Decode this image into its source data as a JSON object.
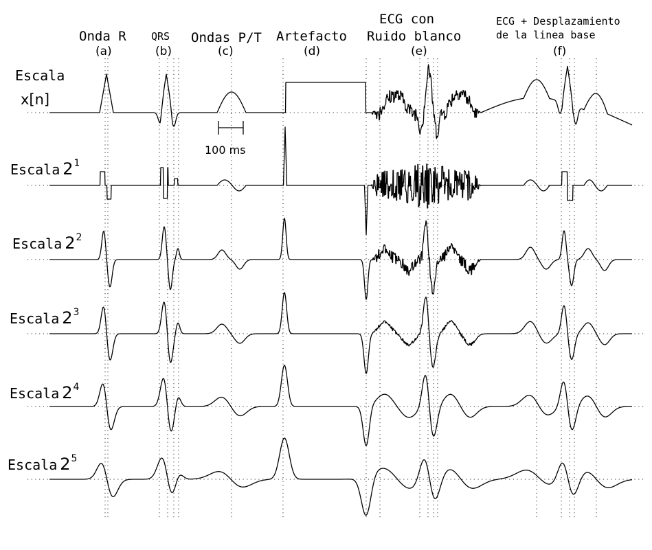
{
  "headers": {
    "a": {
      "line1": "Onda R",
      "tag": "(a)"
    },
    "b": {
      "line1": "QRS",
      "tag": "(b)"
    },
    "c": {
      "line1": "Ondas P/T",
      "tag": "(c)"
    },
    "d": {
      "line1": "Artefacto",
      "tag": "(d)"
    },
    "e": {
      "line1": "ECG con",
      "line2": "Ruido blanco",
      "tag": "(e)"
    },
    "f": {
      "line1": "ECG + Desplazamiento",
      "line2": "de la linea base",
      "tag": "(f)"
    }
  },
  "rows": {
    "r0": {
      "word": "Escala",
      "symbol": "x[n]"
    },
    "r1": {
      "word": "Escala",
      "base": "2",
      "exp": "1"
    },
    "r2": {
      "word": "Escala",
      "base": "2",
      "exp": "2"
    },
    "r3": {
      "word": "Escala",
      "base": "2",
      "exp": "3"
    },
    "r4": {
      "word": "Escala",
      "base": "2",
      "exp": "4"
    },
    "r5": {
      "word": "Escala",
      "base": "2",
      "exp": "5"
    }
  },
  "scalebar": {
    "label": "100 ms"
  },
  "colors": {
    "trace": "#000000",
    "guide": "#000000"
  }
}
